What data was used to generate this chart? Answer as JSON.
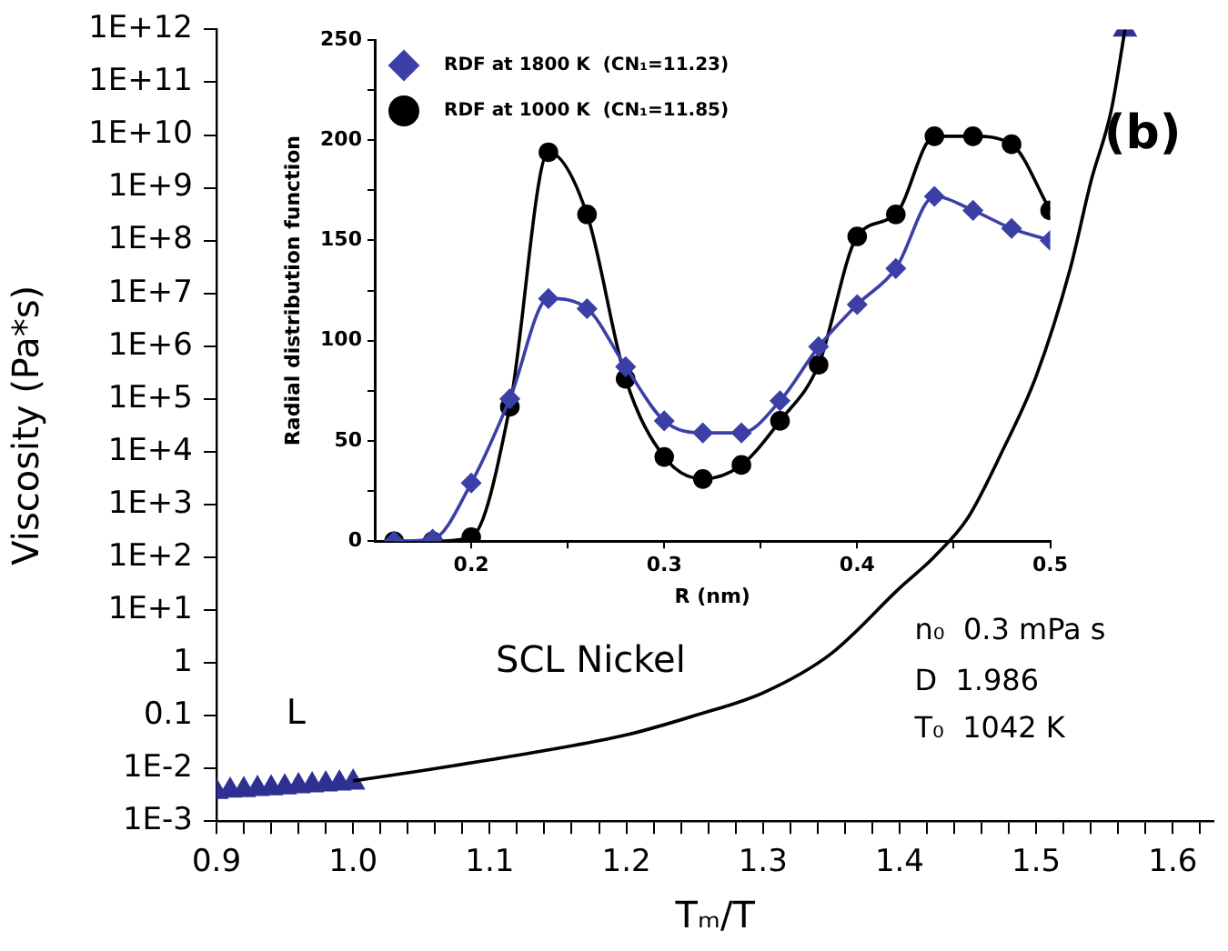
{
  "chart_data": [
    {
      "type": "line",
      "xlabel": "Tₘ/T",
      "ylabel": "Viscosity (Pa*s)",
      "log": "y",
      "grid": false,
      "legend": false,
      "xlim": [
        0.9,
        1.63
      ],
      "xticks": [
        {
          "value": 0.9,
          "label": "0.9"
        },
        {
          "value": 0.92,
          "label": null
        },
        {
          "value": 0.94,
          "label": null
        },
        {
          "value": 0.96,
          "label": null
        },
        {
          "value": 0.98,
          "label": null
        },
        {
          "value": 1.0,
          "label": "1.0"
        },
        {
          "value": 1.02,
          "label": null
        },
        {
          "value": 1.04,
          "label": null
        },
        {
          "value": 1.06,
          "label": null
        },
        {
          "value": 1.08,
          "label": null
        },
        {
          "value": 1.1,
          "label": "1.1"
        },
        {
          "value": 1.12,
          "label": null
        },
        {
          "value": 1.14,
          "label": null
        },
        {
          "value": 1.16,
          "label": null
        },
        {
          "value": 1.18,
          "label": null
        },
        {
          "value": 1.2,
          "label": "1.2"
        },
        {
          "value": 1.22,
          "label": null
        },
        {
          "value": 1.24,
          "label": null
        },
        {
          "value": 1.26,
          "label": null
        },
        {
          "value": 1.28,
          "label": null
        },
        {
          "value": 1.3,
          "label": "1.3"
        },
        {
          "value": 1.32,
          "label": null
        },
        {
          "value": 1.34,
          "label": null
        },
        {
          "value": 1.36,
          "label": null
        },
        {
          "value": 1.38,
          "label": null
        },
        {
          "value": 1.4,
          "label": "1.4"
        },
        {
          "value": 1.42,
          "label": null
        },
        {
          "value": 1.44,
          "label": null
        },
        {
          "value": 1.46,
          "label": null
        },
        {
          "value": 1.48,
          "label": null
        },
        {
          "value": 1.5,
          "label": "1.5"
        },
        {
          "value": 1.52,
          "label": null
        },
        {
          "value": 1.54,
          "label": null
        },
        {
          "value": 1.56,
          "label": null
        },
        {
          "value": 1.58,
          "label": null
        },
        {
          "value": 1.6,
          "label": "1.6"
        },
        {
          "value": 1.62,
          "label": null
        }
      ],
      "ylim": [
        0.001,
        1000000000000.0
      ],
      "yticks": [
        {
          "value": 0.001,
          "label": "1E-3"
        },
        {
          "value": 0.01,
          "label": "1E-2"
        },
        0.1,
        1,
        {
          "value": 10,
          "label": "1E+1"
        },
        {
          "value": 100,
          "label": "1E+2"
        },
        {
          "value": 1000,
          "label": "1E+3"
        },
        {
          "value": 10000,
          "label": "1E+4"
        },
        {
          "value": 100000,
          "label": "1E+5"
        },
        {
          "value": 1000000,
          "label": "1E+6"
        },
        {
          "value": 10000000,
          "label": "1E+7"
        },
        {
          "value": 100000000,
          "label": "1E+8"
        },
        {
          "value": 1000000000,
          "label": "1E+9"
        },
        {
          "value": 10000000000,
          "label": "1E+10"
        },
        {
          "value": 100000000000,
          "label": "1E+11"
        },
        {
          "value": 1000000000000,
          "label": "1E+12"
        }
      ],
      "annotations": [
        "SCL Nickel",
        "L",
        "(b)",
        "n₀  0.3 mPa s",
        "D  1.986",
        "T₀  1042 K"
      ],
      "series": [
        {
          "type": "line",
          "marker": "none",
          "color": "#000000",
          "x": [
            1.0,
            1.05,
            1.1,
            1.15,
            1.2,
            1.25,
            1.3,
            1.35,
            1.4,
            1.425,
            1.45,
            1.475,
            1.5,
            1.525,
            1.54,
            1.555,
            1.565
          ],
          "values": [
            0.0058,
            0.009,
            0.0145,
            0.024,
            0.043,
            0.1,
            0.27,
            1.5,
            26,
            100,
            560,
            10000,
            270000,
            30000000,
            1300000000,
            30000000000,
            1000000000000
          ]
        },
        {
          "type": "scatter",
          "marker": "triangle",
          "color": "#2e3192",
          "x": [
            0.9,
            0.91,
            0.92,
            0.93,
            0.94,
            0.95,
            0.96,
            0.97,
            0.98,
            0.99,
            1.0,
            1.565
          ],
          "values": [
            0.0036,
            0.0038,
            0.0039,
            0.0041,
            0.0042,
            0.0044,
            0.0046,
            0.0048,
            0.005,
            0.0052,
            0.0054,
            1000000000000
          ]
        }
      ]
    },
    {
      "type": "line",
      "xlabel": "R (nm)",
      "ylabel": "Radial distribution function",
      "grid": false,
      "legend": "top left",
      "xlim": [
        0.15,
        0.5
      ],
      "xticks": [
        {
          "value": 0.2,
          "label": "0.2"
        },
        {
          "value": 0.25,
          "label": null
        },
        {
          "value": 0.3,
          "label": "0.3"
        },
        {
          "value": 0.35,
          "label": null
        },
        {
          "value": 0.4,
          "label": "0.4"
        },
        {
          "value": 0.45,
          "label": null
        },
        {
          "value": 0.5,
          "label": "0.5"
        }
      ],
      "ylim": [
        0,
        250
      ],
      "yticks": [
        0,
        {
          "value": 25,
          "label": null
        },
        50,
        {
          "value": 75,
          "label": null
        },
        100,
        {
          "value": 125,
          "label": null
        },
        150,
        {
          "value": 175,
          "label": null
        },
        200,
        {
          "value": 225,
          "label": null
        },
        250
      ],
      "x": [
        0.16,
        0.18,
        0.2,
        0.22,
        0.24,
        0.26,
        0.28,
        0.3,
        0.32,
        0.34,
        0.36,
        0.38,
        0.4,
        0.42,
        0.44,
        0.46,
        0.48,
        0.5
      ],
      "series": [
        {
          "name": "RDF at 1800 K  (CN₁=11.23)",
          "marker": "diamond",
          "color": "#3b3fa6",
          "values": [
            0,
            1,
            29,
            71,
            121,
            116,
            87,
            60,
            54,
            54,
            70,
            97,
            118,
            136,
            172,
            165,
            156,
            150
          ]
        },
        {
          "name": "RDF at 1000 K  (CN₁=11.85)",
          "marker": "circle",
          "color": "#000000",
          "values": [
            0,
            0,
            2,
            67,
            194,
            163,
            81,
            42,
            31,
            38,
            60,
            88,
            152,
            163,
            202,
            202,
            198,
            165
          ]
        }
      ]
    }
  ]
}
